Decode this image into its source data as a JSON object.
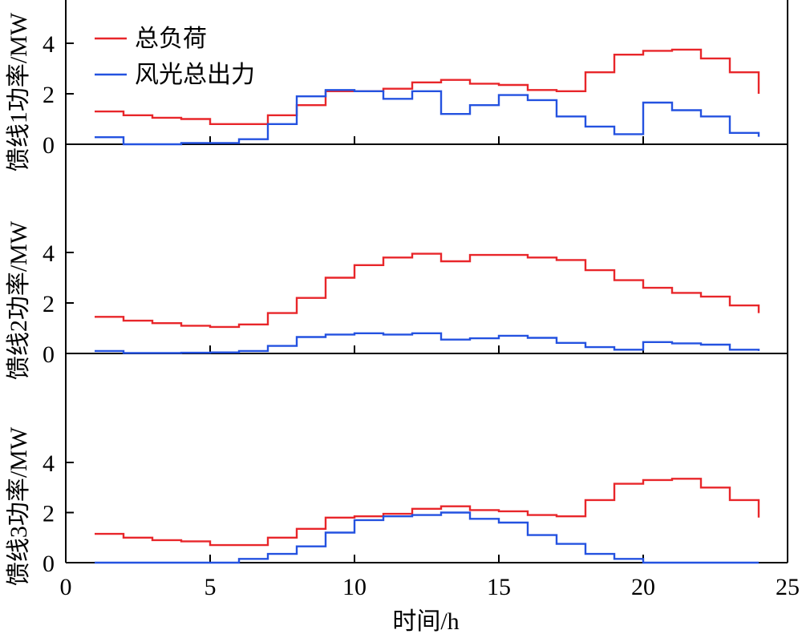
{
  "chart_data": [
    {
      "type": "line",
      "step": "post",
      "ylabel": "馈线1功率/MW",
      "xlim": [
        0,
        25
      ],
      "ylim": [
        0,
        4
      ],
      "yticks": [
        0,
        2,
        4
      ],
      "x": [
        1,
        2,
        3,
        4,
        5,
        6,
        7,
        8,
        9,
        10,
        11,
        12,
        13,
        14,
        15,
        16,
        17,
        18,
        19,
        20,
        21,
        22,
        23,
        24
      ],
      "legend": {
        "placement": "top-left",
        "entries": [
          "总负荷",
          "风光总出力"
        ]
      },
      "series": [
        {
          "name": "总负荷",
          "color": "#e8262a",
          "values": [
            1.3,
            1.15,
            1.05,
            1.0,
            0.8,
            0.8,
            1.15,
            1.55,
            2.1,
            2.1,
            2.2,
            2.45,
            2.55,
            2.4,
            2.35,
            2.15,
            2.1,
            2.85,
            3.55,
            3.7,
            3.75,
            3.4,
            2.85,
            2.0
          ]
        },
        {
          "name": "风光总出力",
          "color": "#2452e0",
          "values": [
            0.28,
            0.0,
            0.0,
            0.05,
            0.05,
            0.2,
            0.8,
            1.9,
            2.15,
            2.1,
            1.8,
            2.1,
            1.2,
            1.55,
            1.95,
            1.75,
            1.1,
            0.7,
            0.4,
            1.65,
            1.35,
            1.1,
            0.45,
            0.3
          ]
        }
      ]
    },
    {
      "type": "line",
      "step": "post",
      "ylabel": "馈线2功率/MW",
      "xlim": [
        0,
        25
      ],
      "ylim": [
        0,
        4
      ],
      "yticks": [
        0,
        2,
        4
      ],
      "x": [
        1,
        2,
        3,
        4,
        5,
        6,
        7,
        8,
        9,
        10,
        11,
        12,
        13,
        14,
        15,
        16,
        17,
        18,
        19,
        20,
        21,
        22,
        23,
        24
      ],
      "series": [
        {
          "name": "总负荷",
          "color": "#e8262a",
          "values": [
            1.45,
            1.3,
            1.2,
            1.1,
            1.05,
            1.15,
            1.6,
            2.2,
            3.0,
            3.5,
            3.8,
            3.95,
            3.65,
            3.9,
            3.9,
            3.8,
            3.7,
            3.3,
            2.9,
            2.6,
            2.4,
            2.25,
            1.9,
            1.6
          ]
        },
        {
          "name": "风光总出力",
          "color": "#2452e0",
          "values": [
            0.1,
            0.02,
            0.02,
            0.03,
            0.04,
            0.1,
            0.3,
            0.65,
            0.75,
            0.8,
            0.75,
            0.8,
            0.55,
            0.6,
            0.7,
            0.62,
            0.42,
            0.25,
            0.15,
            0.45,
            0.4,
            0.35,
            0.15,
            0.1
          ]
        }
      ]
    },
    {
      "type": "line",
      "step": "post",
      "ylabel": "馈线3功率/MW",
      "xlabel": "时间/h",
      "xlim": [
        0,
        25
      ],
      "xticks": [
        0,
        5,
        10,
        15,
        20,
        25
      ],
      "ylim": [
        0,
        4
      ],
      "yticks": [
        0,
        2,
        4
      ],
      "x": [
        1,
        2,
        3,
        4,
        5,
        6,
        7,
        8,
        9,
        10,
        11,
        12,
        13,
        14,
        15,
        16,
        17,
        18,
        19,
        20,
        21,
        22,
        23,
        24
      ],
      "series": [
        {
          "name": "总负荷",
          "color": "#e8262a",
          "values": [
            1.15,
            1.0,
            0.9,
            0.85,
            0.7,
            0.7,
            1.0,
            1.35,
            1.8,
            1.85,
            1.95,
            2.15,
            2.25,
            2.1,
            2.05,
            1.9,
            1.85,
            2.5,
            3.15,
            3.3,
            3.35,
            3.0,
            2.5,
            1.8
          ]
        },
        {
          "name": "风光总出力",
          "color": "#2452e0",
          "values": [
            0.0,
            0.0,
            0.0,
            0.0,
            0.0,
            0.15,
            0.35,
            0.65,
            1.2,
            1.7,
            1.85,
            1.9,
            2.0,
            1.75,
            1.6,
            1.1,
            0.75,
            0.35,
            0.15,
            0.0,
            0.0,
            0.0,
            0.0,
            0.0
          ]
        }
      ]
    }
  ]
}
